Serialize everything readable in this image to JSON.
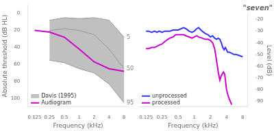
{
  "chart_data": [
    {
      "type": "line",
      "xlabel": "Frequency (kHz)",
      "ylabel": "Absolute threshold (dB HL)",
      "log": "x",
      "xlim": [
        0.09,
        10
      ],
      "xticks": [
        0.125,
        0.25,
        0.5,
        1,
        2,
        4,
        8
      ],
      "ylim": [
        110,
        -10
      ],
      "yticks": [
        0,
        20,
        40,
        60,
        80,
        100
      ],
      "grid": false,
      "legend": "lower left",
      "series": [
        {
          "name": "Davis (1995)",
          "type": "area",
          "color": "#c0c0c0",
          "x": [
            0.25,
            0.5,
            1,
            2,
            4,
            8
          ],
          "lower": [
            8,
            5,
            6,
            5,
            8,
            28
          ],
          "values": [
            55,
            58,
            65,
            70,
            83,
            105
          ]
        },
        {
          "color": "#999999",
          "x": [
            0.25,
            0.5,
            1,
            2,
            4,
            8
          ],
          "values": [
            8,
            5,
            6,
            5,
            8,
            28
          ]
        },
        {
          "color": "#999999",
          "x": [
            0.25,
            0.5,
            1,
            2,
            4,
            8
          ],
          "values": [
            20,
            18,
            20,
            25,
            42,
            65
          ]
        },
        {
          "color": "#999999",
          "x": [
            0.25,
            0.5,
            1,
            2,
            4,
            8
          ],
          "values": [
            55,
            58,
            65,
            70,
            83,
            105
          ]
        },
        {
          "name": "Audiogram",
          "color": "#cc00cc",
          "x": [
            0.125,
            0.25,
            0.5,
            1,
            2,
            4,
            8
          ],
          "values": [
            20,
            22,
            28,
            42,
            57,
            65,
            68
          ]
        }
      ],
      "annotations": [
        {
          "text": "5",
          "x": 8,
          "y": 28
        },
        {
          "text": "50",
          "x": 8,
          "y": 65
        },
        {
          "text": "95",
          "x": 8,
          "y": 105
        }
      ]
    },
    {
      "type": "line",
      "title": "\"seven\"",
      "xlabel": "Frequency (kHz)",
      "ylabel": "Level (dB)",
      "log": "x",
      "xlim": [
        0.09,
        10
      ],
      "xticks": [
        0.125,
        0.25,
        0.5,
        1,
        2,
        4,
        8
      ],
      "ylim": [
        -95,
        -15
      ],
      "yticks": [
        -90,
        -80,
        -70,
        -60,
        -50,
        -40,
        -30,
        -20
      ],
      "grid": false,
      "legend": "lower left",
      "series": [
        {
          "name": "unprocessed",
          "color": "#3333ff",
          "x": [
            0.125,
            0.14,
            0.16,
            0.18,
            0.2,
            0.22,
            0.25,
            0.28,
            0.32,
            0.35,
            0.4,
            0.45,
            0.5,
            0.56,
            0.63,
            0.7,
            0.8,
            0.9,
            1.0,
            1.1,
            1.2,
            1.4,
            1.6,
            1.8,
            2.0,
            2.2,
            2.4,
            2.6,
            2.8,
            3.0,
            3.2,
            3.4,
            3.6,
            3.8,
            4.0,
            4.2,
            4.5,
            5.0,
            5.5,
            6.0,
            7.0,
            8.0
          ],
          "values": [
            -30,
            -30,
            -31,
            -30,
            -31,
            -30,
            -31,
            -30,
            -30,
            -30,
            -29,
            -29,
            -29,
            -28,
            -27,
            -28,
            -30,
            -31,
            -30,
            -28,
            -27,
            -30,
            -32,
            -33,
            -35,
            -34,
            -36,
            -37,
            -36,
            -37,
            -40,
            -44,
            -46,
            -44,
            -46,
            -48,
            -48,
            -49,
            -50,
            -50,
            -51,
            -52
          ]
        },
        {
          "name": "processed",
          "color": "#cc00cc",
          "x": [
            0.125,
            0.14,
            0.16,
            0.18,
            0.2,
            0.22,
            0.25,
            0.28,
            0.32,
            0.35,
            0.4,
            0.45,
            0.5,
            0.56,
            0.63,
            0.7,
            0.8,
            0.9,
            1.0,
            1.1,
            1.2,
            1.4,
            1.6,
            1.8,
            2.0,
            2.2,
            2.4,
            2.5,
            2.6,
            2.8,
            3.0,
            3.2,
            3.5,
            3.7,
            4.0,
            4.2,
            4.5,
            5.0
          ],
          "values": [
            -45,
            -45,
            -44,
            -44,
            -43,
            -42,
            -41,
            -39,
            -37,
            -36,
            -35,
            -33,
            -33,
            -33,
            -33,
            -34,
            -35,
            -36,
            -35,
            -34,
            -35,
            -36,
            -37,
            -37,
            -38,
            -40,
            -45,
            -50,
            -55,
            -65,
            -72,
            -68,
            -65,
            -67,
            -80,
            -84,
            -88,
            -93
          ]
        }
      ]
    }
  ]
}
